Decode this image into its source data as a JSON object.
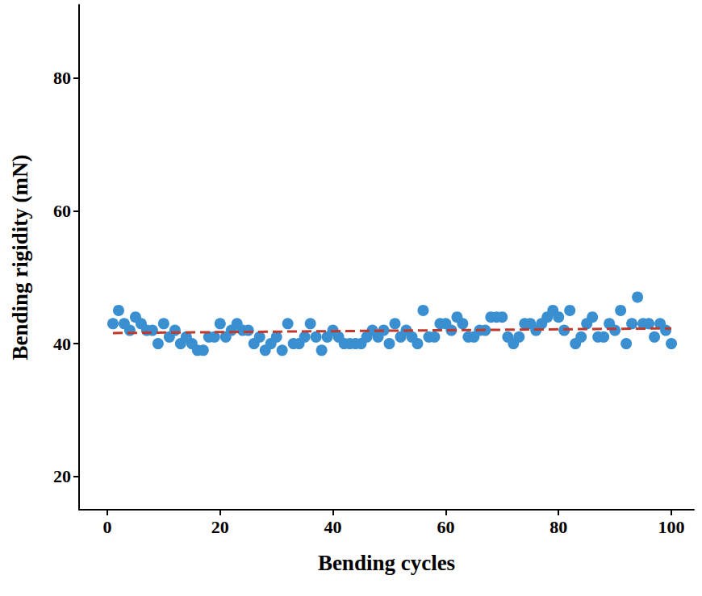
{
  "chart_data": {
    "type": "scatter",
    "x_label": "Bending cycles",
    "y_label": "Bending rigidity (mN)",
    "xlim": [
      -5,
      104
    ],
    "xticks": [
      0,
      20,
      40,
      60,
      80,
      100
    ],
    "ylim": [
      15,
      91
    ],
    "yticks": [
      20,
      40,
      60,
      80
    ],
    "grid": false,
    "series": [
      {
        "type": "scatter",
        "color": "#3a8fd0",
        "marker": "circle",
        "x": [
          1,
          2,
          3,
          4,
          5,
          6,
          7,
          8,
          9,
          10,
          11,
          12,
          13,
          14,
          15,
          16,
          17,
          18,
          19,
          20,
          21,
          22,
          23,
          24,
          25,
          26,
          27,
          28,
          29,
          30,
          31,
          32,
          33,
          34,
          35,
          36,
          37,
          38,
          39,
          40,
          41,
          42,
          43,
          44,
          45,
          46,
          47,
          48,
          49,
          50,
          51,
          52,
          53,
          54,
          55,
          56,
          57,
          58,
          59,
          60,
          61,
          62,
          63,
          64,
          65,
          66,
          67,
          68,
          69,
          70,
          71,
          72,
          73,
          74,
          75,
          76,
          77,
          78,
          79,
          80,
          81,
          82,
          83,
          84,
          85,
          86,
          87,
          88,
          89,
          90,
          91,
          92,
          93,
          94,
          95,
          96,
          97,
          98,
          99,
          100
        ],
        "values": [
          43,
          45,
          43,
          42,
          44,
          43,
          42,
          42,
          40,
          43,
          41,
          42,
          40,
          41,
          40,
          39,
          39,
          41,
          41,
          43,
          41,
          42,
          43,
          42,
          42,
          40,
          41,
          39,
          40,
          41,
          39,
          43,
          40,
          40,
          41,
          43,
          41,
          39,
          41,
          42,
          41,
          40,
          40,
          40,
          40,
          41,
          42,
          41,
          42,
          40,
          43,
          41,
          42,
          41,
          40,
          45,
          41,
          41,
          43,
          43,
          42,
          44,
          43,
          41,
          41,
          42,
          42,
          44,
          44,
          44,
          41,
          40,
          41,
          43,
          43,
          42,
          43,
          44,
          45,
          44,
          42,
          45,
          40,
          41,
          43,
          44,
          41,
          41,
          43,
          42,
          45,
          40,
          43,
          47,
          43,
          43,
          41,
          43,
          42,
          40
        ]
      },
      {
        "type": "line",
        "color": "#c0392b",
        "line_style": "dashed",
        "x": [
          1,
          100
        ],
        "values": [
          41.6,
          42.3
        ]
      }
    ]
  }
}
